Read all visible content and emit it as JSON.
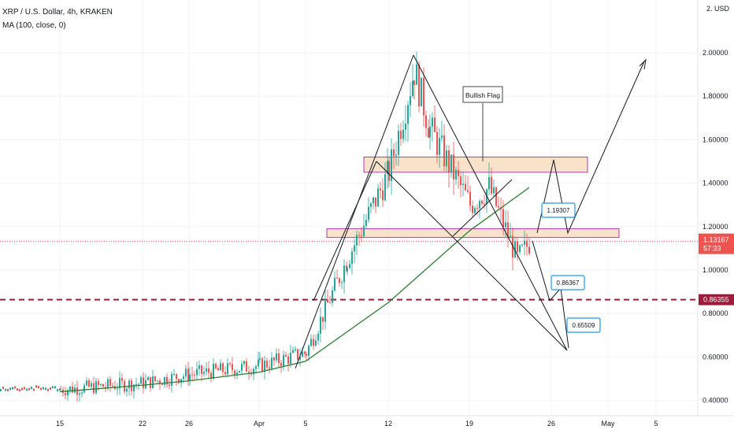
{
  "header": {
    "title": "XRP / U.S. Dollar, 4h, KRAKEN",
    "indicator": "MA (100, close, 0)",
    "currency": "2. USD"
  },
  "price_axis": {
    "ticks": [
      "2.00000",
      "1.80000",
      "1.60000",
      "1.40000",
      "1.20000",
      "1.00000",
      "0.80000",
      "0.60000",
      "0.40000"
    ],
    "current_price": "1.13167",
    "countdown": "57:33",
    "support_label": "0.86355"
  },
  "time_axis": {
    "ticks": [
      "15",
      "22",
      "26",
      "Apr",
      "5",
      "12",
      "19",
      "26",
      "May",
      "5"
    ]
  },
  "annotations": {
    "pattern_label": "Bullish Flag",
    "targets": [
      "1.19307",
      "0.86367",
      "0.65509"
    ]
  },
  "colors": {
    "up": "#26a69a",
    "down": "#ef5350",
    "ma": "#2e7d32",
    "support": "#9c1c3a",
    "zone_fill": "#f5d9b8",
    "zone_border": "#b23ab0",
    "label_border": "#2196f3"
  },
  "chart_data": {
    "type": "line",
    "title": "XRP / U.S. Dollar, 4h, KRAKEN",
    "ylim": [
      0.4,
      2.0
    ],
    "x_ticks": [
      "15",
      "22",
      "26",
      "Apr",
      "5",
      "12",
      "19",
      "26",
      "May",
      "5"
    ],
    "series": [
      {
        "name": "MA (100, close, 0)",
        "x": [
          "15",
          "22",
          "26",
          "Apr",
          "5",
          "12",
          "19",
          "24"
        ],
        "values": [
          0.44,
          0.47,
          0.49,
          0.53,
          0.58,
          0.85,
          1.18,
          1.38
        ]
      }
    ],
    "price_path": {
      "x": [
        "15",
        "22",
        "26",
        "Apr",
        "5",
        "8",
        "12",
        "14",
        "15",
        "19",
        "21",
        "23",
        "24"
      ],
      "values": [
        0.45,
        0.48,
        0.52,
        0.56,
        0.62,
        1.05,
        1.45,
        1.92,
        1.65,
        1.3,
        1.38,
        1.05,
        1.13
      ]
    },
    "horizontal_lines": [
      {
        "value": 0.86355,
        "style": "dashed"
      }
    ],
    "zones": [
      {
        "low": 1.45,
        "high": 1.52
      },
      {
        "low": 1.15,
        "high": 1.19
      }
    ],
    "labels": {
      "current": "1.13167",
      "countdown": "57:33",
      "support": "0.86355"
    }
  }
}
